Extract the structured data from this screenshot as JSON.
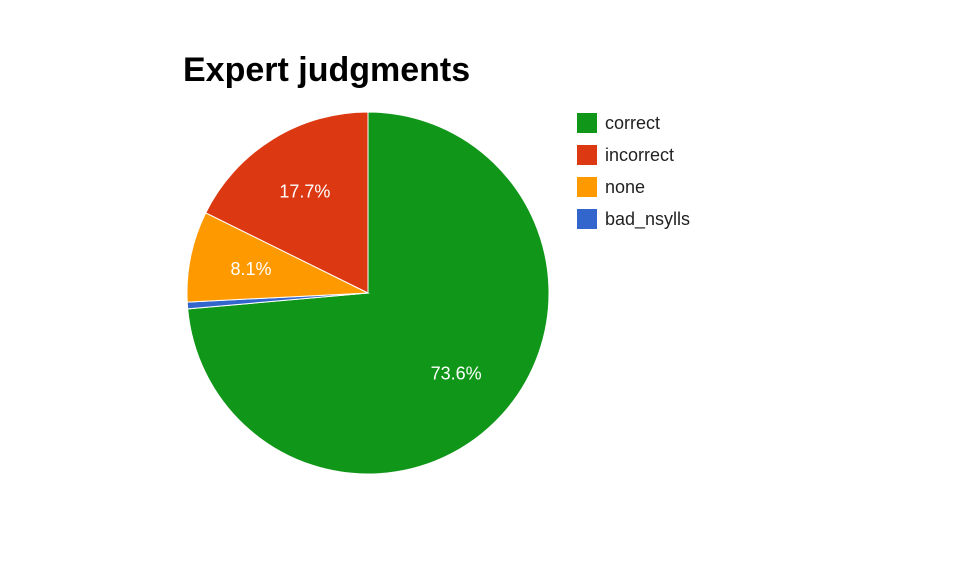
{
  "chart_data": {
    "type": "pie",
    "title": "Expert judgments",
    "start_angle_deg": 0,
    "direction": "clockwise",
    "legend_position": "right",
    "slices": [
      {
        "name": "correct",
        "percent": 73.6,
        "label": "73.6%",
        "color": "#109618"
      },
      {
        "name": "bad_nsylls",
        "percent": 0.6,
        "label": "",
        "color": "#3366cc"
      },
      {
        "name": "none",
        "percent": 8.1,
        "label": "8.1%",
        "color": "#ff9900"
      },
      {
        "name": "incorrect",
        "percent": 17.7,
        "label": "17.7%",
        "color": "#dc3912"
      }
    ],
    "legend": [
      {
        "name": "correct",
        "color": "#109618"
      },
      {
        "name": "incorrect",
        "color": "#dc3912"
      },
      {
        "name": "none",
        "color": "#ff9900"
      },
      {
        "name": "bad_nsylls",
        "color": "#3366cc"
      }
    ]
  }
}
